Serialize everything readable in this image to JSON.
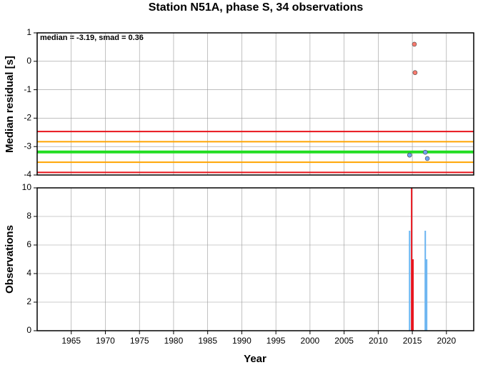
{
  "chart_data": [
    {
      "type": "scatter",
      "title": "Station N51A, phase S, 34 observations",
      "ylabel": "Median residual [s]",
      "annotation": "median = -3.19, smad = 0.36",
      "xlim": [
        1960,
        2024
      ],
      "xticks": [
        1965,
        1970,
        1975,
        1980,
        1985,
        1990,
        1995,
        2000,
        2005,
        2010,
        2015,
        2020
      ],
      "ylim": [
        -4,
        1
      ],
      "yticks": [
        -4,
        -3,
        -2,
        -1,
        0,
        1
      ],
      "grid": true,
      "hlines": [
        {
          "value": -2.47,
          "color": "#e8141c",
          "width": 2
        },
        {
          "value": -3.91,
          "color": "#e8141c",
          "width": 2
        },
        {
          "value": -2.83,
          "color": "#ffa500",
          "width": 2
        },
        {
          "value": -3.55,
          "color": "#ffa500",
          "width": 2
        },
        {
          "value": -3.19,
          "color": "#22dd22",
          "width": 4
        }
      ],
      "series": [
        {
          "color": "#f87a6e",
          "x": [
            2015.3,
            2015.4
          ],
          "values": [
            0.6,
            -0.4
          ]
        },
        {
          "color": "#6fa2f2",
          "x": [
            2014.6,
            2016.9,
            2017.2
          ],
          "values": [
            -3.3,
            -3.2,
            -3.42
          ]
        }
      ]
    },
    {
      "type": "bar",
      "xlabel": "Year",
      "ylabel": "Observations",
      "xlim": [
        1960,
        2024
      ],
      "xticks": [
        1965,
        1970,
        1975,
        1980,
        1985,
        1990,
        1995,
        2000,
        2005,
        2010,
        2015,
        2020
      ],
      "ylim": [
        0,
        10
      ],
      "yticks": [
        0,
        2,
        4,
        6,
        8,
        10
      ],
      "grid": true,
      "series": [
        {
          "color": "#6ab4f0",
          "x": [
            2014.6,
            2016.9,
            2017.1
          ],
          "values": [
            7,
            7,
            5
          ]
        },
        {
          "color": "#e8141c",
          "x": [
            2014.9,
            2015.1
          ],
          "values": [
            10,
            5
          ]
        }
      ]
    }
  ]
}
